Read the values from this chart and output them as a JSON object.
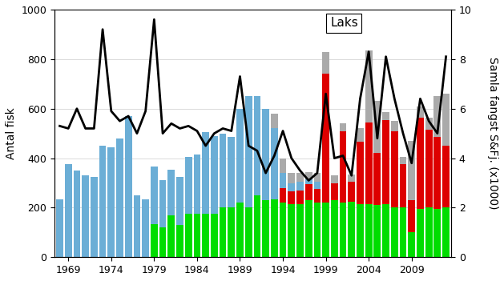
{
  "years": [
    1968,
    1969,
    1970,
    1971,
    1972,
    1973,
    1974,
    1975,
    1976,
    1977,
    1978,
    1979,
    1980,
    1981,
    1982,
    1983,
    1984,
    1985,
    1986,
    1987,
    1988,
    1989,
    1990,
    1991,
    1992,
    1993,
    1994,
    1995,
    1996,
    1997,
    1998,
    1999,
    2000,
    2001,
    2002,
    2003,
    2004,
    2005,
    2006,
    2007,
    2008,
    2009,
    2010,
    2011,
    2012,
    2013
  ],
  "blue": [
    235,
    375,
    350,
    330,
    325,
    450,
    445,
    480,
    570,
    250,
    235,
    230,
    190,
    185,
    195,
    230,
    240,
    330,
    315,
    300,
    285,
    380,
    450,
    400,
    370,
    285,
    60,
    35,
    35,
    20,
    30,
    0,
    0,
    0,
    0,
    0,
    0,
    0,
    0,
    0,
    0,
    0,
    0,
    0,
    0,
    0
  ],
  "green": [
    0,
    0,
    0,
    0,
    0,
    0,
    0,
    0,
    0,
    0,
    0,
    135,
    120,
    170,
    130,
    175,
    175,
    175,
    175,
    200,
    200,
    220,
    200,
    250,
    230,
    235,
    220,
    215,
    215,
    230,
    220,
    220,
    230,
    220,
    225,
    215,
    215,
    210,
    215,
    200,
    200,
    100,
    195,
    200,
    195,
    200
  ],
  "red": [
    0,
    0,
    0,
    0,
    0,
    0,
    0,
    0,
    0,
    0,
    0,
    0,
    0,
    0,
    0,
    0,
    0,
    0,
    0,
    0,
    0,
    0,
    0,
    0,
    0,
    0,
    60,
    50,
    55,
    65,
    55,
    520,
    70,
    290,
    80,
    250,
    330,
    210,
    340,
    310,
    175,
    130,
    370,
    315,
    290,
    250
  ],
  "gray": [
    0,
    0,
    0,
    0,
    0,
    0,
    0,
    0,
    0,
    0,
    0,
    0,
    0,
    0,
    0,
    0,
    0,
    0,
    0,
    0,
    0,
    0,
    0,
    0,
    0,
    60,
    60,
    40,
    35,
    30,
    35,
    90,
    30,
    30,
    30,
    55,
    290,
    210,
    30,
    40,
    30,
    240,
    45,
    50,
    165,
    210
  ],
  "line": [
    5.3,
    5.2,
    6.0,
    5.2,
    5.2,
    9.2,
    5.9,
    5.5,
    5.7,
    5.0,
    5.9,
    9.6,
    5.0,
    5.4,
    5.2,
    5.3,
    5.1,
    4.5,
    5.0,
    5.2,
    5.1,
    7.3,
    4.5,
    4.3,
    3.4,
    4.1,
    5.1,
    4.0,
    3.5,
    3.1,
    3.4,
    6.6,
    4.0,
    4.1,
    3.3,
    6.4,
    8.3,
    4.8,
    8.1,
    6.4,
    5.0,
    3.8,
    6.4,
    5.5,
    5.0,
    8.1
  ],
  "bar_color_blue": "#6baed6",
  "bar_color_green": "#00dd00",
  "bar_color_red": "#dd0000",
  "bar_color_gray": "#aaaaaa",
  "line_color": "#000000",
  "ylabel_left": "Antal fisk",
  "ylabel_right": "Samla fangst S&Fj. (x1000)",
  "ylim_left": [
    0,
    1000
  ],
  "ylim_right": [
    0,
    10
  ],
  "xtick_labels": [
    "1969",
    "1974",
    "1979",
    "1984",
    "1989",
    "1994",
    "1999",
    "2004",
    "2009"
  ],
  "xtick_positions": [
    1969,
    1974,
    1979,
    1984,
    1989,
    1994,
    1999,
    2004,
    2009
  ],
  "xlim": [
    1967.4,
    2013.6
  ],
  "legend_text": "Laks",
  "axis_fontsize": 10,
  "bar_width": 0.82
}
